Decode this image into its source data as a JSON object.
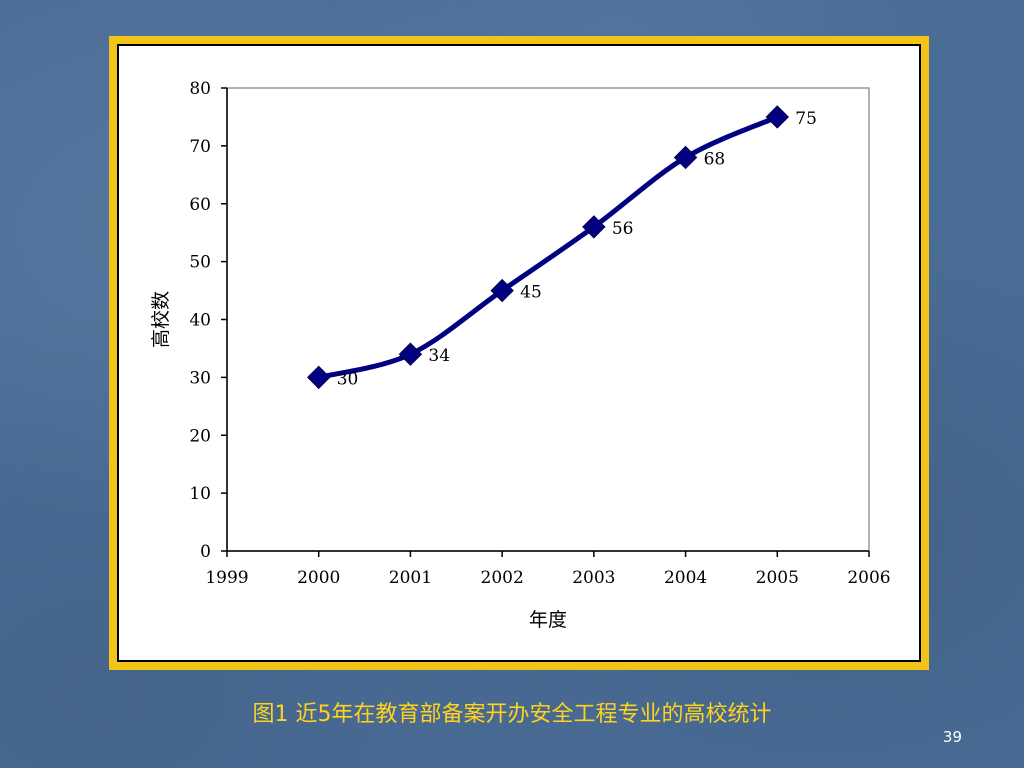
{
  "chart_data": {
    "type": "line",
    "x": [
      2000,
      2001,
      2002,
      2003,
      2004,
      2005
    ],
    "values": [
      30,
      34,
      45,
      56,
      68,
      75
    ],
    "data_labels": [
      "30",
      "34",
      "45",
      "56",
      "68",
      "75"
    ],
    "xlabel": "年度",
    "ylabel": "高校数",
    "xlim": [
      1999,
      2006
    ],
    "ylim": [
      0,
      80
    ],
    "x_ticks": [
      "1999",
      "2000",
      "2001",
      "2002",
      "2003",
      "2004",
      "2005",
      "2006"
    ],
    "y_ticks": [
      "0",
      "10",
      "20",
      "30",
      "40",
      "50",
      "60",
      "70",
      "80"
    ],
    "grid": false,
    "legend": "none",
    "line_color": "#000080",
    "marker": "diamond"
  },
  "caption": "图1 近5年在教育部备案开办安全工程专业的高校统计",
  "page_number": "39",
  "colors": {
    "background": "#4a6d97",
    "frame": "#f2c417",
    "caption": "#ffd21e"
  }
}
